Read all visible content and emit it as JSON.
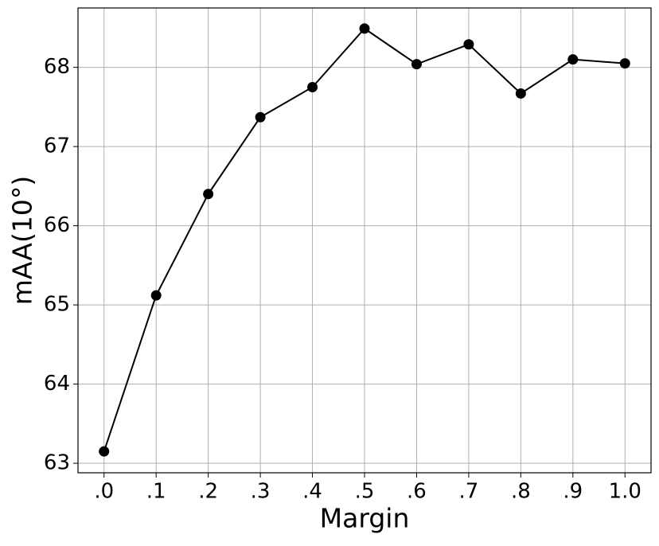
{
  "chart_data": {
    "type": "line",
    "xlabel": "Margin",
    "ylabel": "mAA(10°)",
    "categories": [
      ".0",
      ".1",
      ".2",
      ".3",
      ".4",
      ".5",
      ".6",
      ".7",
      ".8",
      ".9",
      "1.0"
    ],
    "series": [
      {
        "name": "mAA",
        "color": "#000000",
        "values": [
          63.15,
          65.12,
          66.4,
          67.37,
          67.75,
          68.49,
          68.04,
          68.29,
          67.67,
          68.1,
          68.05
        ]
      }
    ],
    "ylim": [
      62.88,
      68.75
    ],
    "yticks": [
      63,
      64,
      65,
      66,
      67,
      68
    ],
    "grid": true
  }
}
